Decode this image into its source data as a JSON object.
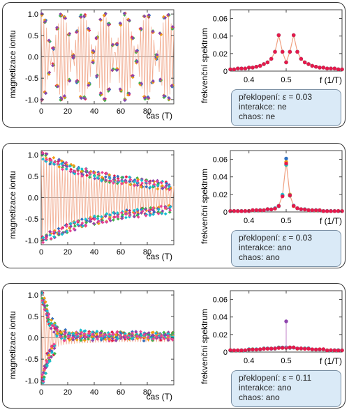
{
  "panels": [
    {
      "left_ylabel": "magnetizace iontu",
      "left_xlabel": "čas (T)",
      "right_ylabel": "frekvenční spektrum",
      "right_xlabel": "f (1/T)",
      "info": {
        "l1_prefix": "překlopení: ",
        "l1_symbol": "ε",
        "l1_value": " = 0.03",
        "l2": "interakce: ne",
        "l3": "chaos: ne"
      }
    },
    {
      "left_ylabel": "magnetizace iontu",
      "left_xlabel": "čas (T)",
      "right_ylabel": "frekvenční spektrum",
      "right_xlabel": "f (1/T)",
      "info": {
        "l1_prefix": "překlopení: ",
        "l1_symbol": "ε",
        "l1_value": " = 0.03",
        "l2": "interakce: ano",
        "l3": "chaos: ano"
      }
    },
    {
      "left_ylabel": "magnetizace iontu",
      "left_xlabel": "čas (T)",
      "right_ylabel": "frekvenční spektrum",
      "right_xlabel": "f (1/T)",
      "info": {
        "l1_prefix": "překlopení: ",
        "l1_symbol": "ε",
        "l1_value": " = 0.11",
        "l2": "interakce: ano",
        "l3": "chaos: ano"
      }
    }
  ],
  "colors": {
    "series": [
      "#e6194b",
      "#2f6fbf",
      "#3cb44b",
      "#f39c12",
      "#8e44ad",
      "#17becf",
      "#e84393"
    ],
    "trace": "#f0a080",
    "panel_border": "#333333",
    "info_bg": "#daeaf7"
  },
  "chart_data": [
    {
      "type": "scatter",
      "panel": 1,
      "xlabel": "čas (T)",
      "ylabel": "magnetizace iontu",
      "xlim": [
        0,
        100
      ],
      "ylim": [
        -1.1,
        1.1
      ],
      "xticks": [
        0,
        20,
        40,
        60,
        80
      ],
      "yticks": [
        -1.0,
        -0.5,
        0.0,
        0.5,
        1.0
      ],
      "model": "alternating sign each period, envelope cos(2*pi*0.03*t), all ions identical",
      "points_x": [
        0,
        3,
        6,
        9,
        12,
        15,
        18,
        21,
        24,
        27,
        30,
        33,
        36,
        39,
        42,
        45,
        48,
        51,
        54,
        57,
        60,
        63,
        66,
        69,
        72,
        75,
        78,
        81,
        84,
        87,
        90,
        93,
        96,
        99
      ],
      "envelope": [
        1.0,
        0.83,
        0.38,
        -0.19,
        -0.68,
        -0.98,
        -0.93,
        -0.54,
        0.03,
        0.58,
        0.95,
        0.96,
        0.64,
        0.12,
        -0.45,
        -0.87,
        -0.99,
        -0.77,
        -0.29,
        0.29,
        0.77,
        0.99,
        0.87,
        0.45,
        -0.12,
        -0.64,
        -0.96,
        -0.95,
        -0.58,
        -0.03,
        0.54,
        0.93,
        0.98,
        0.68
      ]
    },
    {
      "type": "scatter",
      "panel": 1,
      "xlabel": "f (1/T)",
      "ylabel": "frekvenční spektrum",
      "xlim": [
        0.35,
        0.65
      ],
      "ylim": [
        0,
        0.07
      ],
      "xticks": [
        0.4,
        0.5
      ],
      "yticks": [
        0,
        0.02,
        0.04,
        0.06
      ],
      "x": [
        0.35,
        0.36,
        0.37,
        0.38,
        0.39,
        0.4,
        0.41,
        0.42,
        0.43,
        0.44,
        0.45,
        0.46,
        0.47,
        0.48,
        0.49,
        0.5,
        0.51,
        0.52,
        0.53,
        0.54,
        0.55,
        0.56,
        0.57,
        0.58,
        0.59,
        0.6,
        0.61,
        0.62,
        0.63,
        0.64,
        0.65
      ],
      "y": [
        0.002,
        0.002,
        0.003,
        0.003,
        0.003,
        0.004,
        0.004,
        0.005,
        0.006,
        0.008,
        0.01,
        0.014,
        0.022,
        0.041,
        0.022,
        0.01,
        0.022,
        0.041,
        0.022,
        0.014,
        0.01,
        0.008,
        0.006,
        0.005,
        0.004,
        0.004,
        0.003,
        0.003,
        0.003,
        0.002,
        0.002
      ]
    },
    {
      "type": "scatter",
      "panel": 2,
      "xlabel": "čas (T)",
      "ylabel": "magnetizace iontu",
      "xlim": [
        0,
        100
      ],
      "ylim": [
        -1.1,
        1.1
      ],
      "xticks": [
        0,
        20,
        40,
        60,
        80
      ],
      "yticks": [
        -1.0,
        -0.5,
        0.0,
        0.5,
        1.0
      ],
      "model": "alternating sign each period, magnitude decaying from about 1.0 to about 0.25 with scatter between ions",
      "points_x": [
        1,
        4,
        7,
        10,
        13,
        16,
        19,
        22,
        25,
        28,
        31,
        34,
        37,
        40,
        43,
        46,
        49,
        52,
        55,
        58,
        61,
        64,
        67,
        70,
        73,
        76,
        79,
        82,
        85,
        88,
        91,
        94,
        97
      ],
      "envelope": [
        0.98,
        0.93,
        0.88,
        0.84,
        0.8,
        0.76,
        0.72,
        0.69,
        0.66,
        0.63,
        0.6,
        0.58,
        0.55,
        0.53,
        0.51,
        0.49,
        0.47,
        0.45,
        0.44,
        0.42,
        0.41,
        0.39,
        0.38,
        0.37,
        0.36,
        0.34,
        0.33,
        0.32,
        0.31,
        0.3,
        0.29,
        0.28,
        0.27
      ]
    },
    {
      "type": "scatter",
      "panel": 2,
      "xlabel": "f (1/T)",
      "ylabel": "frekvenční spektrum",
      "xlim": [
        0.35,
        0.65
      ],
      "ylim": [
        0,
        0.07
      ],
      "xticks": [
        0.4,
        0.5
      ],
      "yticks": [
        0,
        0.02,
        0.04,
        0.06
      ],
      "x": [
        0.35,
        0.36,
        0.37,
        0.38,
        0.39,
        0.4,
        0.41,
        0.42,
        0.43,
        0.44,
        0.45,
        0.46,
        0.47,
        0.48,
        0.49,
        0.5,
        0.51,
        0.52,
        0.53,
        0.54,
        0.55,
        0.56,
        0.57,
        0.58,
        0.59,
        0.6,
        0.61,
        0.62,
        0.63,
        0.64,
        0.65
      ],
      "y": [
        0.001,
        0.001,
        0.001,
        0.001,
        0.001,
        0.001,
        0.002,
        0.002,
        0.002,
        0.002,
        0.003,
        0.003,
        0.004,
        0.007,
        0.019,
        0.057,
        0.019,
        0.007,
        0.004,
        0.003,
        0.003,
        0.002,
        0.002,
        0.002,
        0.002,
        0.001,
        0.001,
        0.001,
        0.001,
        0.001,
        0.001
      ]
    },
    {
      "type": "scatter",
      "panel": 3,
      "xlabel": "čas (T)",
      "ylabel": "magnetizace iontu",
      "xlim": [
        0,
        100
      ],
      "ylim": [
        -1.1,
        1.1
      ],
      "xticks": [
        0,
        20,
        40,
        60,
        80
      ],
      "yticks": [
        -1.0,
        -0.5,
        0.0,
        0.5,
        1.0
      ],
      "model": "fast decay from about ±1.0 to scatter around 0.0 to 0.1 within about 20 T",
      "points_x": [
        1,
        2,
        3,
        4,
        5,
        6,
        8,
        10,
        12,
        15,
        18,
        21,
        24,
        27,
        30,
        33,
        36,
        39,
        42,
        45,
        48,
        51,
        54,
        57,
        60,
        63,
        66,
        69,
        72,
        75,
        78,
        81,
        84,
        87,
        90,
        93,
        96,
        99
      ],
      "envelope": [
        0.95,
        0.88,
        0.75,
        0.62,
        0.5,
        0.42,
        0.33,
        0.26,
        0.22,
        0.18,
        0.16,
        0.15,
        0.14,
        0.13,
        0.13,
        0.12,
        0.12,
        0.12,
        0.11,
        0.11,
        0.11,
        0.11,
        0.11,
        0.1,
        0.1,
        0.1,
        0.1,
        0.1,
        0.1,
        0.1,
        0.1,
        0.1,
        0.1,
        0.1,
        0.1,
        0.1,
        0.1,
        0.1
      ]
    },
    {
      "type": "scatter",
      "panel": 3,
      "xlabel": "f (1/T)",
      "ylabel": "frekvenční spektrum",
      "xlim": [
        0.35,
        0.65
      ],
      "ylim": [
        0,
        0.07
      ],
      "xticks": [
        0.4,
        0.5
      ],
      "yticks": [
        0,
        0.02,
        0.04,
        0.06
      ],
      "x": [
        0.35,
        0.36,
        0.37,
        0.38,
        0.39,
        0.4,
        0.41,
        0.42,
        0.43,
        0.44,
        0.45,
        0.46,
        0.47,
        0.48,
        0.49,
        0.5,
        0.51,
        0.52,
        0.53,
        0.54,
        0.55,
        0.56,
        0.57,
        0.58,
        0.59,
        0.6,
        0.61,
        0.62,
        0.63,
        0.64,
        0.65
      ],
      "y": [
        0.002,
        0.002,
        0.002,
        0.002,
        0.002,
        0.003,
        0.003,
        0.003,
        0.003,
        0.004,
        0.004,
        0.004,
        0.004,
        0.005,
        0.005,
        0.005,
        0.005,
        0.005,
        0.004,
        0.004,
        0.004,
        0.004,
        0.003,
        0.003,
        0.003,
        0.003,
        0.002,
        0.002,
        0.002,
        0.002,
        0.002
      ],
      "outlier": {
        "x": 0.5,
        "y": 0.035
      }
    }
  ]
}
